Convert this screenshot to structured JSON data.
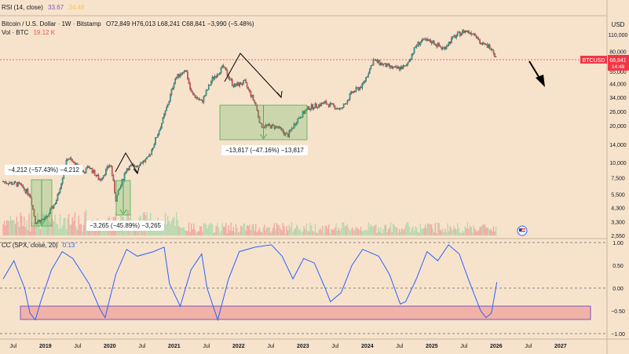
{
  "header": {
    "rsi_label": "RSI (14, close)",
    "rsi_value": "33.67",
    "rsi_value2": "34.48",
    "symbol": "Bitcoin / U.S. Dollar · 1W · Bitstamp",
    "ohlc": "O72,849 H76,013 L68,241 C68,841 −3,990 (−5.48%)",
    "vol_label": "Vol · BTC",
    "vol_value": "19.12 K",
    "cc_label": "CC (SPX, close, 20)",
    "cc_value": "0.13"
  },
  "price_axis": {
    "currency": "USD",
    "ticks": [
      "110,000",
      "80,000",
      "55,000",
      "44,000",
      "34,000",
      "26,000",
      "20,000",
      "14,000",
      "10,000",
      "7,500",
      "5,500",
      "4,300",
      "3,300",
      "2,550"
    ],
    "symbol_badge": "BTCUSD",
    "last_price": "68,841",
    "countdown": "14:48"
  },
  "cc_axis": {
    "ticks": [
      "1.00",
      "0.50",
      "0.00",
      "−0.50",
      "−1.00"
    ]
  },
  "time_axis": {
    "ticks": [
      "Jul",
      "2019",
      "Jul",
      "2020",
      "Jul",
      "2021",
      "Jul",
      "2022",
      "Jul",
      "2023",
      "Jul",
      "2024",
      "Jul",
      "2025",
      "Jul",
      "2026",
      "Jul",
      "2027"
    ]
  },
  "annotations": [
    {
      "text": "−4,212 (−57.43%) −4,212"
    },
    {
      "text": "−3,265 (−45.89%) −3,265"
    },
    {
      "text": "−13,817 (−47.16%) −13,817"
    }
  ],
  "colors": {
    "up": "#26a69a",
    "down": "#ef5350",
    "cc_line": "#2962ff",
    "accent": "#f23645",
    "zone": "#ec8a8a",
    "measure": "#4caf50"
  },
  "chart_data": [
    {
      "type": "line",
      "title": "Bitcoin / U.S. Dollar · 1W · Bitstamp",
      "ylabel": "USD",
      "yscale": "log",
      "x": [
        "2018-06",
        "2018-09",
        "2018-11",
        "2018-12",
        "2019-02",
        "2019-04",
        "2019-06",
        "2019-07",
        "2019-09",
        "2019-10",
        "2019-12",
        "2020-02",
        "2020-03",
        "2020-05",
        "2020-07",
        "2020-09",
        "2020-11",
        "2020-12",
        "2021-01",
        "2021-02",
        "2021-04",
        "2021-05",
        "2021-07",
        "2021-09",
        "2021-11",
        "2022-01",
        "2022-03",
        "2022-05",
        "2022-06",
        "2022-09",
        "2022-11",
        "2023-01",
        "2023-03",
        "2023-06",
        "2023-09",
        "2023-11",
        "2024-01",
        "2024-03",
        "2024-05",
        "2024-07",
        "2024-09",
        "2024-11",
        "2024-12",
        "2025-02",
        "2025-04",
        "2025-06",
        "2025-08",
        "2025-10",
        "2025-11",
        "2026-01",
        "2026-02"
      ],
      "series": [
        {
          "values": [
            7000,
            6600,
            5500,
            3300,
            3500,
            5000,
            11000,
            10000,
            8300,
            9300,
            7200,
            9800,
            5000,
            9000,
            9600,
            10700,
            18000,
            24000,
            33000,
            48000,
            58000,
            37000,
            31000,
            48000,
            60000,
            42000,
            45000,
            30000,
            20000,
            19500,
            16500,
            23000,
            28000,
            30500,
            27000,
            37000,
            42500,
            68000,
            62000,
            58000,
            60000,
            90000,
            98000,
            96000,
            84000,
            105000,
            118000,
            112000,
            92000,
            87000,
            68841
          ]
        }
      ]
    },
    {
      "type": "line",
      "title": "CC (SPX, close, 20)",
      "ylim": [
        -1,
        1
      ],
      "x": [
        "2018-06",
        "2018-08",
        "2018-10",
        "2018-11",
        "2018-12",
        "2019-01",
        "2019-03",
        "2019-05",
        "2019-07",
        "2019-10",
        "2019-12",
        "2020-01",
        "2020-03",
        "2020-05",
        "2020-07",
        "2020-10",
        "2020-12",
        "2021-01",
        "2021-03",
        "2021-05",
        "2021-07",
        "2021-08",
        "2021-10",
        "2021-12",
        "2022-02",
        "2022-05",
        "2022-08",
        "2022-10",
        "2022-12",
        "2023-02",
        "2023-04",
        "2023-06",
        "2023-07",
        "2023-09",
        "2023-11",
        "2024-01",
        "2024-04",
        "2024-06",
        "2024-08",
        "2024-09",
        "2024-11",
        "2025-01",
        "2025-03",
        "2025-05",
        "2025-07",
        "2025-09",
        "2025-11",
        "2025-12",
        "2026-01",
        "2026-02"
      ],
      "series": [
        {
          "name": "CC (SPX, close, 20)",
          "values": [
            0.2,
            0.6,
            0.0,
            -0.55,
            -0.7,
            -0.3,
            0.4,
            0.8,
            0.65,
            0.1,
            -0.45,
            -0.65,
            0.3,
            0.85,
            0.7,
            0.8,
            0.9,
            0.1,
            -0.4,
            0.4,
            0.75,
            0.0,
            -0.7,
            0.2,
            0.8,
            0.9,
            0.95,
            0.7,
            0.2,
            0.65,
            0.55,
            0.0,
            -0.3,
            -0.1,
            0.5,
            0.85,
            0.7,
            0.3,
            -0.35,
            -0.3,
            0.2,
            0.8,
            0.6,
            0.95,
            0.75,
            0.1,
            -0.5,
            -0.65,
            -0.55,
            0.13
          ]
        }
      ]
    }
  ]
}
